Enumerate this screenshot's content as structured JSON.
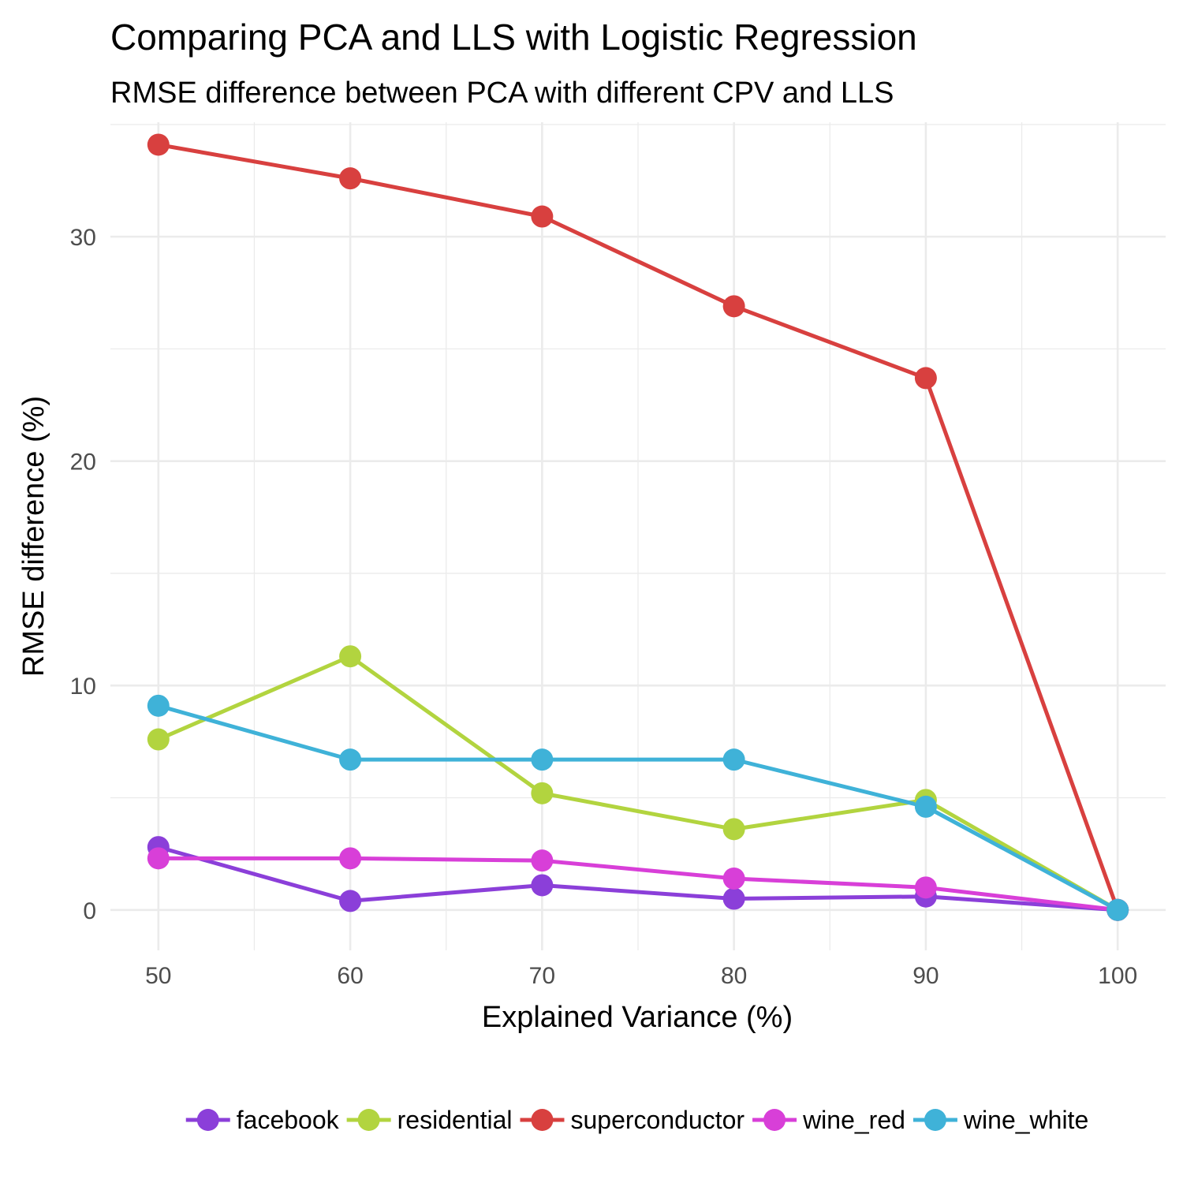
{
  "chart_data": {
    "type": "line",
    "title": "Comparing PCA and LLS with Logistic Regression",
    "subtitle": "RMSE difference between PCA with different CPV and LLS",
    "xlabel": "Explained Variance (%)",
    "ylabel": "RMSE difference (%)",
    "x": [
      50,
      60,
      70,
      80,
      90,
      100
    ],
    "xlim": [
      47.5,
      102.5
    ],
    "ylim": [
      -1.8,
      35.1
    ],
    "x_ticks": [
      50,
      60,
      70,
      80,
      90,
      100
    ],
    "y_ticks": [
      0,
      10,
      20,
      30
    ],
    "grid": true,
    "legend_position": "bottom",
    "series": [
      {
        "name": "facebook",
        "color": "#8b3fd9",
        "values": [
          2.8,
          0.4,
          1.1,
          0.5,
          0.6,
          0.0
        ]
      },
      {
        "name": "residential",
        "color": "#b2d43f",
        "values": [
          7.6,
          11.3,
          5.2,
          3.6,
          4.9,
          0.0
        ]
      },
      {
        "name": "superconductor",
        "color": "#d8403f",
        "values": [
          34.1,
          32.6,
          30.9,
          26.9,
          23.7,
          0.0
        ]
      },
      {
        "name": "wine_red",
        "color": "#d83fd8",
        "values": [
          2.3,
          2.3,
          2.2,
          1.4,
          1.0,
          0.0
        ]
      },
      {
        "name": "wine_white",
        "color": "#3fb2d8",
        "values": [
          9.1,
          6.7,
          6.7,
          6.7,
          4.6,
          0.0
        ]
      }
    ]
  }
}
